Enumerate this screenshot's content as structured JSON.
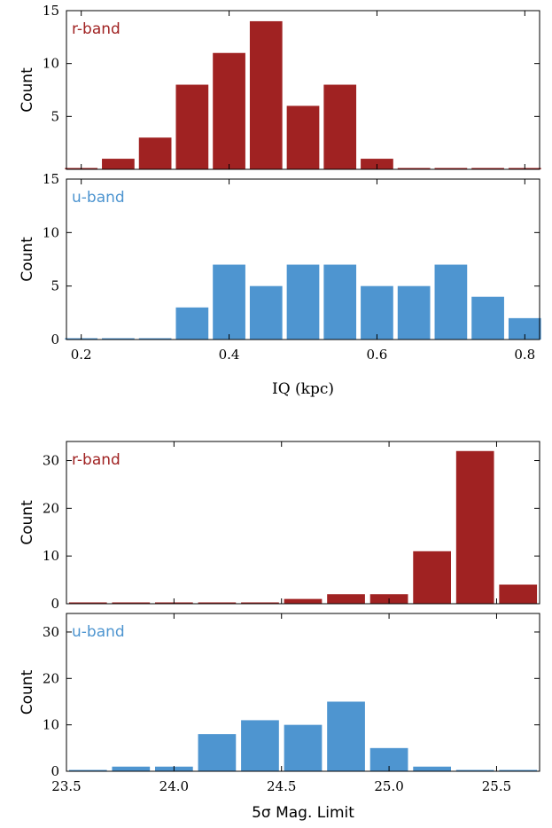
{
  "colors": {
    "r_band": "#a02222",
    "u_band": "#4e95d0"
  },
  "chart_data": [
    {
      "type": "bar",
      "panels": [
        {
          "band_label": "r-band",
          "ylabel": "Count",
          "ylim": [
            0,
            15
          ],
          "yticks": [
            5,
            10,
            15
          ],
          "series": [
            {
              "name": "r-band",
              "x": [
                0.2,
                0.25,
                0.3,
                0.35,
                0.4,
                0.45,
                0.5,
                0.55,
                0.6,
                0.65,
                0.7,
                0.75,
                0.8
              ],
              "values": [
                0,
                1,
                3,
                8,
                11,
                14,
                6,
                8,
                1,
                0,
                0,
                0,
                0
              ]
            }
          ]
        },
        {
          "band_label": "u-band",
          "ylabel": "Count",
          "ylim": [
            0,
            15
          ],
          "yticks": [
            0,
            5,
            10,
            15
          ],
          "series": [
            {
              "name": "u-band",
              "x": [
                0.2,
                0.25,
                0.3,
                0.35,
                0.4,
                0.45,
                0.5,
                0.55,
                0.6,
                0.65,
                0.7,
                0.75,
                0.8
              ],
              "values": [
                0,
                0,
                0,
                3,
                7,
                5,
                7,
                7,
                5,
                5,
                7,
                4,
                2
              ]
            }
          ]
        }
      ],
      "xlabel": "IQ    (kpc)",
      "xlim": [
        0.18,
        0.82
      ],
      "xticks": [
        "0.2",
        "0.4",
        "0.6",
        "0.8"
      ],
      "bin_width": 0.05
    },
    {
      "type": "bar",
      "panels": [
        {
          "band_label": "r-band",
          "ylabel": "Count",
          "ylim": [
            0,
            34
          ],
          "yticks": [
            0,
            10,
            20,
            30
          ],
          "series": [
            {
              "name": "r-band",
              "x": [
                23.55,
                23.65,
                23.75,
                23.85,
                23.95,
                24.05,
                24.15,
                24.25,
                24.35,
                24.45,
                24.55,
                24.65,
                24.75,
                24.85,
                24.95,
                25.05,
                25.15,
                25.25,
                25.35,
                25.45,
                25.55,
                25.65
              ],
              "values": [
                0,
                0,
                0,
                0,
                0,
                0,
                0,
                0,
                0,
                0,
                1,
                1,
                2,
                2,
                2,
                2,
                11,
                11,
                32,
                32,
                4,
                0
              ]
            }
          ]
        },
        {
          "band_label": "u-band",
          "ylabel": "Count",
          "ylim": [
            0,
            34
          ],
          "yticks": [
            0,
            10,
            20,
            30
          ],
          "series": [
            {
              "name": "u-band",
              "x": [
                23.55,
                23.65,
                23.75,
                23.85,
                23.95,
                24.05,
                24.15,
                24.25,
                24.35,
                24.45,
                24.55,
                24.65,
                24.75,
                24.85,
                24.95,
                25.05,
                25.15,
                25.25,
                25.35,
                25.45,
                25.55,
                25.65
              ],
              "values": [
                0,
                1,
                1,
                1,
                1,
                8,
                8,
                11,
                11,
                10,
                10,
                15,
                15,
                5,
                5,
                1,
                1,
                0,
                0,
                0,
                0,
                0
              ]
            }
          ]
        }
      ],
      "xlabel": "5σ Mag. Limit",
      "xlim": [
        23.5,
        25.7
      ],
      "xticks": [
        "23.5",
        "24.0",
        "24.5",
        "25.0",
        "25.5"
      ]
    }
  ]
}
